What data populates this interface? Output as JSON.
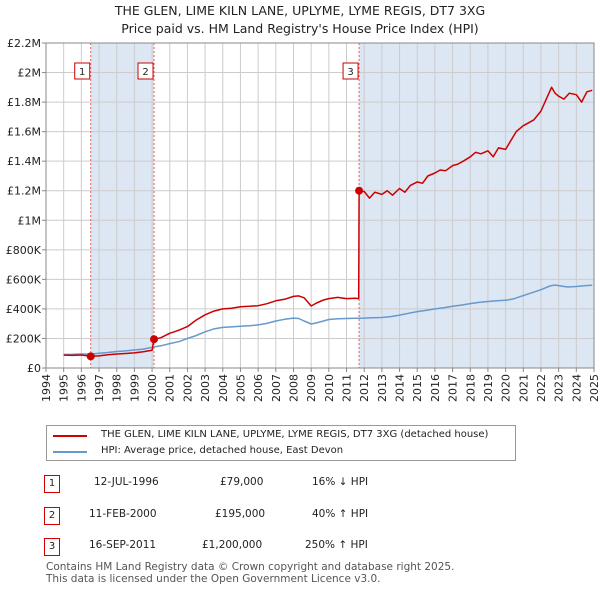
{
  "title_line1": "THE GLEN, LIME KILN LANE, UPLYME, LYME REGIS, DT7 3XG",
  "title_line2": "Price paid vs. HM Land Registry's House Price Index (HPI)",
  "legend": {
    "property_label": "THE GLEN, LIME KILN LANE, UPLYME, LYME REGIS, DT7 3XG (detached house)",
    "hpi_label": "HPI: Average price, detached house, East Devon"
  },
  "colors": {
    "property": "#cc0000",
    "hpi": "#6699cc",
    "grid": "#cccccc",
    "shade": "#dde6f3"
  },
  "transactions": [
    {
      "num": "1",
      "date": "12-JUL-1996",
      "price": "£79,000",
      "hpi_change": "16% ↓ HPI"
    },
    {
      "num": "2",
      "date": "11-FEB-2000",
      "price": "£195,000",
      "hpi_change": "40% ↑ HPI"
    },
    {
      "num": "3",
      "date": "16-SEP-2011",
      "price": "£1,200,000",
      "hpi_change": "250% ↑ HPI"
    }
  ],
  "footer_line1": "Contains HM Land Registry data © Crown copyright and database right 2025.",
  "footer_line2": "This data is licensed under the Open Government Licence v3.0.",
  "chart_data": {
    "type": "line",
    "title": "THE GLEN, LIME KILN LANE, UPLYME, LYME REGIS, DT7 3XG",
    "subtitle": "Price paid vs. HM Land Registry's House Price Index (HPI)",
    "xlabel": "",
    "ylabel": "",
    "xlim": [
      1994,
      2025
    ],
    "ylim": [
      0,
      2200000
    ],
    "x_ticks": [
      1994,
      1995,
      1996,
      1997,
      1998,
      1999,
      2000,
      2001,
      2002,
      2003,
      2004,
      2005,
      2006,
      2007,
      2008,
      2009,
      2010,
      2011,
      2012,
      2013,
      2014,
      2015,
      2016,
      2017,
      2018,
      2019,
      2020,
      2021,
      2022,
      2023,
      2024,
      2025
    ],
    "y_ticks": [
      {
        "value": 0,
        "label": "£0"
      },
      {
        "value": 200000,
        "label": "£200K"
      },
      {
        "value": 400000,
        "label": "£400K"
      },
      {
        "value": 600000,
        "label": "£600K"
      },
      {
        "value": 800000,
        "label": "£800K"
      },
      {
        "value": 1000000,
        "label": "£1M"
      },
      {
        "value": 1200000,
        "label": "£1.2M"
      },
      {
        "value": 1400000,
        "label": "£1.4M"
      },
      {
        "value": 1600000,
        "label": "£1.6M"
      },
      {
        "value": 1800000,
        "label": "£1.8M"
      },
      {
        "value": 2000000,
        "label": "£2M"
      },
      {
        "value": 2200000,
        "label": "£2.2M"
      }
    ],
    "grid": true,
    "shaded_ranges": [
      [
        1996.53,
        2000.11
      ],
      [
        2011.71,
        2025
      ]
    ],
    "markers": [
      {
        "label": "1",
        "x": 1996.53,
        "y": 79000
      },
      {
        "label": "2",
        "x": 2000.11,
        "y": 195000
      },
      {
        "label": "3",
        "x": 2011.71,
        "y": 1200000
      }
    ],
    "series": [
      {
        "name": "THE GLEN, LIME KILN LANE, UPLYME, LYME REGIS, DT7 3XG (detached house)",
        "color": "#cc0000",
        "x": [
          1995.0,
          1995.5,
          1996.0,
          1996.53,
          1997.0,
          1997.5,
          1998.0,
          1998.5,
          1999.0,
          1999.5,
          2000.0,
          2000.11,
          2000.5,
          2001.0,
          2001.5,
          2002.0,
          2002.5,
          2003.0,
          2003.5,
          2004.0,
          2004.5,
          2005.0,
          2005.5,
          2006.0,
          2006.5,
          2007.0,
          2007.5,
          2008.0,
          2008.3,
          2008.6,
          2009.0,
          2009.3,
          2009.7,
          2010.0,
          2010.5,
          2011.0,
          2011.5,
          2011.69,
          2011.71,
          2012.0,
          2012.3,
          2012.6,
          2013.0,
          2013.3,
          2013.6,
          2014.0,
          2014.3,
          2014.6,
          2015.0,
          2015.3,
          2015.6,
          2016.0,
          2016.3,
          2016.6,
          2017.0,
          2017.3,
          2017.6,
          2018.0,
          2018.3,
          2018.6,
          2019.0,
          2019.3,
          2019.6,
          2020.0,
          2020.3,
          2020.6,
          2021.0,
          2021.3,
          2021.6,
          2022.0,
          2022.3,
          2022.6,
          2022.8,
          2023.0,
          2023.3,
          2023.6,
          2024.0,
          2024.3,
          2024.6,
          2024.9
        ],
        "y": [
          87000,
          85000,
          88000,
          79000,
          82000,
          90000,
          95000,
          98000,
          102000,
          110000,
          120000,
          195000,
          205000,
          235000,
          255000,
          280000,
          325000,
          360000,
          385000,
          400000,
          405000,
          415000,
          418000,
          422000,
          435000,
          455000,
          465000,
          485000,
          488000,
          475000,
          420000,
          440000,
          460000,
          470000,
          478000,
          470000,
          472000,
          470000,
          1200000,
          1195000,
          1150000,
          1190000,
          1175000,
          1200000,
          1170000,
          1215000,
          1190000,
          1235000,
          1260000,
          1250000,
          1300000,
          1320000,
          1340000,
          1335000,
          1370000,
          1380000,
          1400000,
          1430000,
          1460000,
          1450000,
          1470000,
          1430000,
          1490000,
          1480000,
          1540000,
          1600000,
          1640000,
          1660000,
          1680000,
          1740000,
          1820000,
          1900000,
          1860000,
          1840000,
          1820000,
          1860000,
          1850000,
          1800000,
          1870000,
          1880000
        ]
      },
      {
        "name": "HPI: Average price, detached house, East Devon",
        "color": "#6699cc",
        "x": [
          1995.0,
          1995.5,
          1996.0,
          1996.53,
          1997.0,
          1997.5,
          1998.0,
          1998.5,
          1999.0,
          1999.5,
          2000.0,
          2000.5,
          2001.0,
          2001.5,
          2002.0,
          2002.5,
          2003.0,
          2003.5,
          2004.0,
          2004.5,
          2005.0,
          2005.5,
          2006.0,
          2006.5,
          2007.0,
          2007.5,
          2008.0,
          2008.3,
          2008.6,
          2009.0,
          2009.3,
          2009.7,
          2010.0,
          2010.5,
          2011.0,
          2011.5,
          2012.0,
          2012.5,
          2013.0,
          2013.5,
          2014.0,
          2014.5,
          2015.0,
          2015.5,
          2016.0,
          2016.5,
          2017.0,
          2017.5,
          2018.0,
          2018.5,
          2019.0,
          2019.5,
          2020.0,
          2020.5,
          2021.0,
          2021.5,
          2022.0,
          2022.5,
          2022.8,
          2023.0,
          2023.5,
          2024.0,
          2024.5,
          2024.9
        ],
        "y": [
          92000,
          93000,
          95000,
          94000,
          100000,
          105000,
          112000,
          116000,
          122000,
          128000,
          140000,
          150000,
          165000,
          178000,
          200000,
          220000,
          245000,
          265000,
          275000,
          278000,
          282000,
          286000,
          292000,
          302000,
          318000,
          330000,
          338000,
          335000,
          318000,
          298000,
          305000,
          318000,
          328000,
          334000,
          335000,
          337000,
          338000,
          340000,
          342000,
          348000,
          358000,
          370000,
          382000,
          390000,
          400000,
          408000,
          418000,
          426000,
          436000,
          444000,
          450000,
          455000,
          458000,
          470000,
          490000,
          510000,
          530000,
          555000,
          562000,
          558000,
          548000,
          552000,
          558000,
          560000
        ]
      }
    ]
  }
}
